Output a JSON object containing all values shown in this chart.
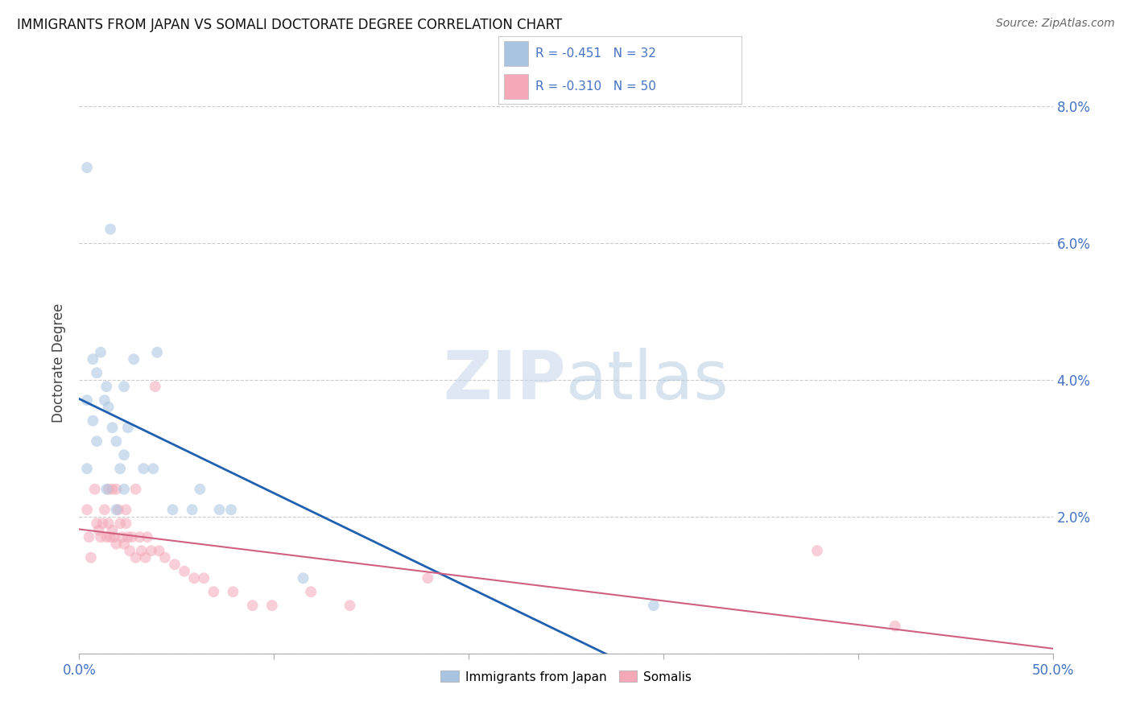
{
  "title": "IMMIGRANTS FROM JAPAN VS SOMALI DOCTORATE DEGREE CORRELATION CHART",
  "source": "Source: ZipAtlas.com",
  "ylabel": "Doctorate Degree",
  "xlim": [
    0,
    0.5
  ],
  "ylim": [
    0,
    0.085
  ],
  "x_ticks": [
    0.0,
    0.1,
    0.2,
    0.3,
    0.4,
    0.5
  ],
  "y_ticks": [
    0.0,
    0.02,
    0.04,
    0.06,
    0.08
  ],
  "background_color": "#ffffff",
  "grid_color": "#cccccc",
  "japan_color": "#a8c4e0",
  "somali_color": "#f4a8b8",
  "japan_line_color": "#2060b0",
  "somali_line_color": "#d06080",
  "legend_text_color": "#4472c4",
  "tick_label_color": "#4472c4",
  "japan_scatter_x": [
    0.004,
    0.016,
    0.004,
    0.007,
    0.009,
    0.011,
    0.007,
    0.013,
    0.015,
    0.017,
    0.019,
    0.021,
    0.014,
    0.009,
    0.004,
    0.028,
    0.023,
    0.033,
    0.019,
    0.023,
    0.038,
    0.048,
    0.058,
    0.062,
    0.014,
    0.023,
    0.072,
    0.078,
    0.115,
    0.295,
    0.025,
    0.04
  ],
  "japan_scatter_y": [
    0.037,
    0.062,
    0.071,
    0.043,
    0.041,
    0.044,
    0.034,
    0.037,
    0.036,
    0.033,
    0.031,
    0.027,
    0.024,
    0.031,
    0.027,
    0.043,
    0.029,
    0.027,
    0.021,
    0.024,
    0.027,
    0.021,
    0.021,
    0.024,
    0.039,
    0.039,
    0.021,
    0.021,
    0.011,
    0.007,
    0.033,
    0.044
  ],
  "somali_scatter_x": [
    0.004,
    0.005,
    0.006,
    0.008,
    0.009,
    0.01,
    0.011,
    0.012,
    0.013,
    0.014,
    0.015,
    0.015,
    0.016,
    0.017,
    0.017,
    0.018,
    0.019,
    0.019,
    0.02,
    0.021,
    0.022,
    0.023,
    0.024,
    0.024,
    0.025,
    0.026,
    0.027,
    0.029,
    0.029,
    0.031,
    0.032,
    0.034,
    0.035,
    0.037,
    0.039,
    0.041,
    0.044,
    0.049,
    0.054,
    0.059,
    0.064,
    0.069,
    0.079,
    0.089,
    0.099,
    0.119,
    0.139,
    0.179,
    0.379,
    0.419
  ],
  "somali_scatter_y": [
    0.021,
    0.017,
    0.014,
    0.024,
    0.019,
    0.018,
    0.017,
    0.019,
    0.021,
    0.017,
    0.019,
    0.024,
    0.017,
    0.024,
    0.018,
    0.017,
    0.016,
    0.024,
    0.021,
    0.019,
    0.017,
    0.016,
    0.021,
    0.019,
    0.017,
    0.015,
    0.017,
    0.014,
    0.024,
    0.017,
    0.015,
    0.014,
    0.017,
    0.015,
    0.039,
    0.015,
    0.014,
    0.013,
    0.012,
    0.011,
    0.011,
    0.009,
    0.009,
    0.007,
    0.007,
    0.009,
    0.007,
    0.011,
    0.015,
    0.004
  ],
  "japan_line_x": [
    0.0,
    0.295
  ],
  "somali_line_x": [
    0.0,
    0.5
  ],
  "watermark_zip": "ZIP",
  "watermark_atlas": "atlas",
  "marker_size": 100,
  "marker_alpha": 0.55,
  "legend_label_japan": "Immigrants from Japan",
  "legend_label_somali": "Somalis"
}
